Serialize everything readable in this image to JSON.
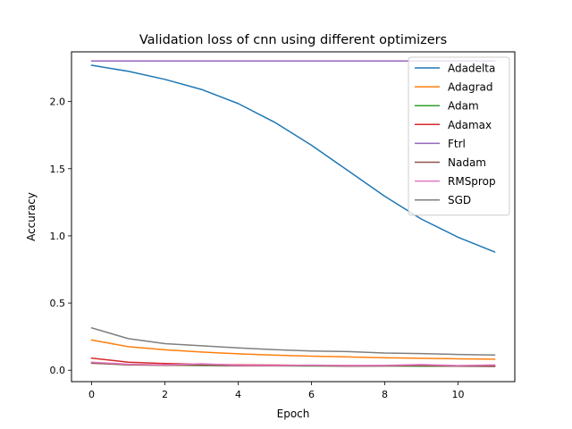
{
  "chart_data": {
    "type": "line",
    "title": "Validation loss of cnn using different optimizers",
    "xlabel": "Epoch",
    "ylabel": "Accuracy",
    "xlim": [
      -0.55,
      11.55
    ],
    "ylim": [
      -0.085,
      2.37
    ],
    "xticks": [
      0,
      2,
      4,
      6,
      8,
      10
    ],
    "yticks": [
      0.0,
      0.5,
      1.0,
      1.5,
      2.0
    ],
    "ytick_labels": [
      "0.0",
      "0.5",
      "1.0",
      "1.5",
      "2.0"
    ],
    "legend_position": "top-right",
    "grid": false,
    "x": [
      0,
      1,
      2,
      3,
      4,
      5,
      6,
      7,
      8,
      9,
      10,
      11
    ],
    "series": [
      {
        "name": "Adadelta",
        "color": "#1f77b4",
        "values": [
          2.27,
          2.225,
          2.165,
          2.09,
          1.985,
          1.845,
          1.675,
          1.485,
          1.295,
          1.125,
          0.99,
          0.88
        ]
      },
      {
        "name": "Adagrad",
        "color": "#ff7f0e",
        "values": [
          0.225,
          0.175,
          0.152,
          0.135,
          0.122,
          0.112,
          0.105,
          0.099,
          0.093,
          0.089,
          0.085,
          0.082
        ]
      },
      {
        "name": "Adam",
        "color": "#2ca02c",
        "values": [
          0.055,
          0.042,
          0.038,
          0.035,
          0.033,
          0.032,
          0.031,
          0.031,
          0.032,
          0.03,
          0.031,
          0.032
        ]
      },
      {
        "name": "Adamax",
        "color": "#d62728",
        "values": [
          0.09,
          0.06,
          0.05,
          0.045,
          0.04,
          0.038,
          0.036,
          0.035,
          0.034,
          0.033,
          0.032,
          0.031
        ]
      },
      {
        "name": "Ftrl",
        "color": "#9467bd",
        "values": [
          2.302,
          2.302,
          2.302,
          2.302,
          2.302,
          2.302,
          2.302,
          2.302,
          2.302,
          2.302,
          2.302,
          2.302
        ]
      },
      {
        "name": "Nadam",
        "color": "#8c564b",
        "values": [
          0.052,
          0.04,
          0.036,
          0.038,
          0.032,
          0.033,
          0.034,
          0.03,
          0.031,
          0.033,
          0.03,
          0.028
        ]
      },
      {
        "name": "RMSprop",
        "color": "#e377c2",
        "values": [
          0.06,
          0.045,
          0.04,
          0.048,
          0.036,
          0.034,
          0.038,
          0.035,
          0.036,
          0.042,
          0.035,
          0.04
        ]
      },
      {
        "name": "SGD",
        "color": "#7f7f7f",
        "values": [
          0.315,
          0.235,
          0.198,
          0.182,
          0.166,
          0.153,
          0.143,
          0.139,
          0.128,
          0.124,
          0.117,
          0.113
        ]
      }
    ]
  }
}
